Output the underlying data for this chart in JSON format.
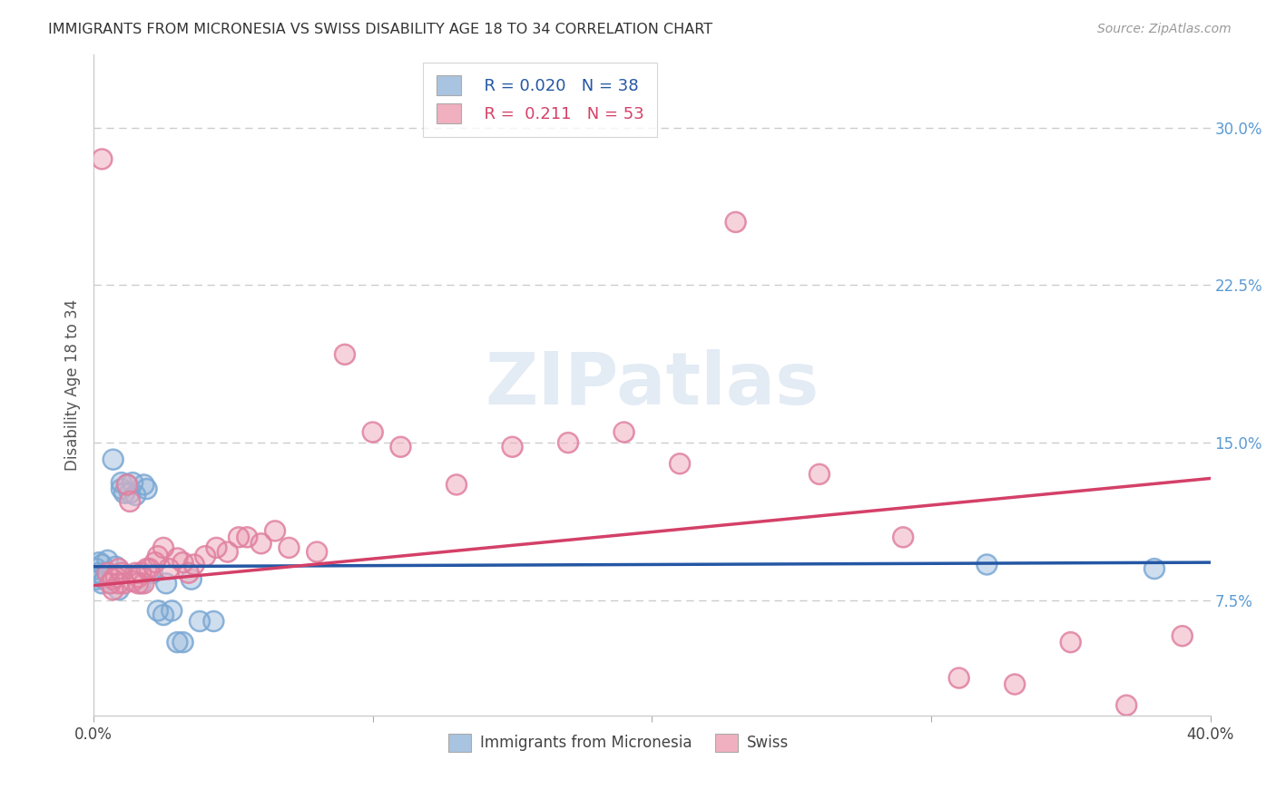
{
  "title": "IMMIGRANTS FROM MICRONESIA VS SWISS DISABILITY AGE 18 TO 34 CORRELATION CHART",
  "source": "Source: ZipAtlas.com",
  "ylabel": "Disability Age 18 to 34",
  "y_ticks_right": [
    0.075,
    0.15,
    0.225,
    0.3
  ],
  "y_tick_labels_right": [
    "7.5%",
    "15.0%",
    "22.5%",
    "30.0%"
  ],
  "xlim": [
    0.0,
    0.4
  ],
  "ylim": [
    0.02,
    0.335
  ],
  "blue_fill": "#a8c4e0",
  "pink_fill": "#f0b0c0",
  "blue_line_color": "#2457a4",
  "pink_line_color": "#d44068",
  "legend_r1": "R = 0.020",
  "legend_n1": "N = 38",
  "legend_r2": "R =  0.211",
  "legend_n2": "N = 53",
  "legend_label1": "Immigrants from Micronesia",
  "legend_label2": "Swiss",
  "watermark": "ZIPatlas",
  "bg_color": "#ffffff",
  "grid_color": "#cccccc",
  "blue_x": [
    0.001,
    0.001,
    0.002,
    0.002,
    0.003,
    0.003,
    0.004,
    0.005,
    0.005,
    0.006,
    0.007,
    0.008,
    0.008,
    0.009,
    0.009,
    0.01,
    0.01,
    0.011,
    0.012,
    0.013,
    0.014,
    0.015,
    0.016,
    0.017,
    0.018,
    0.019,
    0.021,
    0.023,
    0.025,
    0.026,
    0.028,
    0.03,
    0.032,
    0.035,
    0.038,
    0.043,
    0.32,
    0.38
  ],
  "blue_y": [
    0.09,
    0.085,
    0.088,
    0.093,
    0.083,
    0.092,
    0.085,
    0.088,
    0.094,
    0.083,
    0.142,
    0.086,
    0.091,
    0.08,
    0.087,
    0.131,
    0.128,
    0.126,
    0.13,
    0.126,
    0.131,
    0.125,
    0.085,
    0.083,
    0.13,
    0.128,
    0.088,
    0.07,
    0.068,
    0.083,
    0.07,
    0.055,
    0.055,
    0.085,
    0.065,
    0.065,
    0.092,
    0.09
  ],
  "pink_x": [
    0.003,
    0.005,
    0.006,
    0.007,
    0.007,
    0.008,
    0.009,
    0.009,
    0.01,
    0.011,
    0.012,
    0.013,
    0.014,
    0.015,
    0.016,
    0.016,
    0.017,
    0.018,
    0.019,
    0.02,
    0.022,
    0.023,
    0.025,
    0.027,
    0.03,
    0.032,
    0.034,
    0.036,
    0.04,
    0.044,
    0.048,
    0.052,
    0.055,
    0.06,
    0.065,
    0.07,
    0.08,
    0.09,
    0.1,
    0.11,
    0.13,
    0.15,
    0.17,
    0.19,
    0.21,
    0.23,
    0.26,
    0.29,
    0.31,
    0.33,
    0.35,
    0.37,
    0.39
  ],
  "pink_y": [
    0.285,
    0.088,
    0.083,
    0.085,
    0.08,
    0.086,
    0.09,
    0.083,
    0.088,
    0.083,
    0.13,
    0.122,
    0.084,
    0.088,
    0.086,
    0.083,
    0.088,
    0.083,
    0.09,
    0.09,
    0.093,
    0.096,
    0.1,
    0.09,
    0.095,
    0.093,
    0.088,
    0.092,
    0.096,
    0.1,
    0.098,
    0.105,
    0.105,
    0.102,
    0.108,
    0.1,
    0.098,
    0.192,
    0.155,
    0.148,
    0.13,
    0.148,
    0.15,
    0.155,
    0.14,
    0.255,
    0.135,
    0.105,
    0.038,
    0.035,
    0.055,
    0.025,
    0.058
  ]
}
